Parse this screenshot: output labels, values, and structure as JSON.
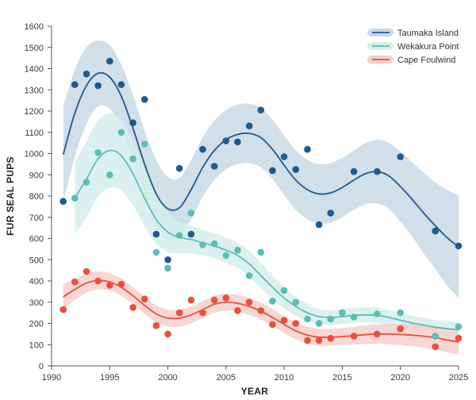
{
  "chart_data": {
    "type": "scatter",
    "title": "",
    "xlabel": "YEAR",
    "ylabel": "FUR SEAL PUPS",
    "xlim": [
      1990,
      2025
    ],
    "ylim": [
      0,
      1600
    ],
    "x_ticks": [
      1990,
      1995,
      2000,
      2005,
      2010,
      2015,
      2020,
      2025
    ],
    "y_ticks": [
      0,
      100,
      200,
      300,
      400,
      500,
      600,
      700,
      800,
      900,
      1000,
      1100,
      1200,
      1300,
      1400,
      1500,
      1600
    ],
    "grid": false,
    "legend_position": "top-right",
    "series": [
      {
        "name": "Taumaka Island",
        "color": "#1f5a8c",
        "band_color": "#c9d9e5",
        "points": [
          [
            1991,
            775
          ],
          [
            1992,
            1325
          ],
          [
            1993,
            1375
          ],
          [
            1994,
            1320
          ],
          [
            1995,
            1435
          ],
          [
            1996,
            1325
          ],
          [
            1997,
            1145
          ],
          [
            1998,
            1255
          ],
          [
            1999,
            620
          ],
          [
            2000,
            500
          ],
          [
            2001,
            930
          ],
          [
            2002,
            620
          ],
          [
            2003,
            1020
          ],
          [
            2004,
            940
          ],
          [
            2005,
            1060
          ],
          [
            2006,
            1055
          ],
          [
            2007,
            1130
          ],
          [
            2008,
            1205
          ],
          [
            2009,
            920
          ],
          [
            2010,
            985
          ],
          [
            2011,
            925
          ],
          [
            2012,
            1020
          ],
          [
            2013,
            665
          ],
          [
            2014,
            720
          ],
          [
            2016,
            915
          ],
          [
            2018,
            915
          ],
          [
            2020,
            985
          ],
          [
            2023,
            635
          ],
          [
            2025,
            565
          ]
        ],
        "trend": [
          [
            1991,
            995
          ],
          [
            1992,
            1190
          ],
          [
            1993,
            1320
          ],
          [
            1994,
            1378
          ],
          [
            1995,
            1360
          ],
          [
            1996,
            1270
          ],
          [
            1997,
            1120
          ],
          [
            1998,
            950
          ],
          [
            1999,
            810
          ],
          [
            2000,
            740
          ],
          [
            2001,
            745
          ],
          [
            2002,
            830
          ],
          [
            2003,
            935
          ],
          [
            2004,
            1015
          ],
          [
            2005,
            1065
          ],
          [
            2006,
            1090
          ],
          [
            2007,
            1095
          ],
          [
            2008,
            1075
          ],
          [
            2009,
            1020
          ],
          [
            2010,
            945
          ],
          [
            2011,
            875
          ],
          [
            2012,
            830
          ],
          [
            2013,
            810
          ],
          [
            2014,
            815
          ],
          [
            2015,
            840
          ],
          [
            2016,
            875
          ],
          [
            2017,
            905
          ],
          [
            2018,
            915
          ],
          [
            2019,
            895
          ],
          [
            2020,
            845
          ],
          [
            2021,
            785
          ],
          [
            2022,
            720
          ],
          [
            2023,
            660
          ],
          [
            2024,
            605
          ],
          [
            2025,
            560
          ]
        ],
        "band_halfwidth": [
          225,
          205,
          180,
          155,
          150,
          150,
          155,
          160,
          160,
          150,
          140,
          140,
          140,
          140,
          140,
          140,
          140,
          140,
          140,
          140,
          140,
          140,
          140,
          140,
          140,
          140,
          145,
          150,
          155,
          165,
          175,
          190,
          205,
          225,
          240
        ]
      },
      {
        "name": "Wekakura Point",
        "color": "#5dbdb5",
        "band_color": "#d6eeec",
        "points": [
          [
            1992,
            790
          ],
          [
            1993,
            865
          ],
          [
            1994,
            1005
          ],
          [
            1995,
            900
          ],
          [
            1996,
            1100
          ],
          [
            1997,
            975
          ],
          [
            1998,
            1045
          ],
          [
            1999,
            535
          ],
          [
            2000,
            460
          ],
          [
            2001,
            615
          ],
          [
            2002,
            720
          ],
          [
            2003,
            570
          ],
          [
            2004,
            575
          ],
          [
            2005,
            520
          ],
          [
            2006,
            545
          ],
          [
            2007,
            425
          ],
          [
            2008,
            535
          ],
          [
            2009,
            305
          ],
          [
            2010,
            355
          ],
          [
            2011,
            300
          ],
          [
            2012,
            220
          ],
          [
            2013,
            200
          ],
          [
            2014,
            220
          ],
          [
            2015,
            250
          ],
          [
            2016,
            230
          ],
          [
            2018,
            245
          ],
          [
            2020,
            250
          ],
          [
            2023,
            140
          ],
          [
            2025,
            185
          ]
        ],
        "trend": [
          [
            1992,
            790
          ],
          [
            1993,
            880
          ],
          [
            1994,
            975
          ],
          [
            1995,
            1015
          ],
          [
            1996,
            990
          ],
          [
            1997,
            905
          ],
          [
            1998,
            790
          ],
          [
            1999,
            690
          ],
          [
            2000,
            630
          ],
          [
            2001,
            605
          ],
          [
            2002,
            595
          ],
          [
            2003,
            580
          ],
          [
            2004,
            565
          ],
          [
            2005,
            545
          ],
          [
            2006,
            520
          ],
          [
            2007,
            480
          ],
          [
            2008,
            425
          ],
          [
            2009,
            370
          ],
          [
            2010,
            320
          ],
          [
            2011,
            280
          ],
          [
            2012,
            250
          ],
          [
            2013,
            232
          ],
          [
            2014,
            228
          ],
          [
            2015,
            232
          ],
          [
            2016,
            238
          ],
          [
            2017,
            240
          ],
          [
            2018,
            238
          ],
          [
            2019,
            228
          ],
          [
            2020,
            215
          ],
          [
            2021,
            202
          ],
          [
            2022,
            192
          ],
          [
            2023,
            182
          ],
          [
            2024,
            175
          ],
          [
            2025,
            170
          ]
        ],
        "band_halfwidth": [
          170,
          180,
          180,
          175,
          165,
          150,
          135,
          115,
          95,
          75,
          65,
          60,
          60,
          60,
          60,
          60,
          60,
          55,
          50,
          45,
          40,
          35,
          35,
          35,
          35,
          35,
          35,
          35,
          35,
          35,
          35,
          35,
          35,
          35
        ]
      },
      {
        "name": "Cape Foulwind",
        "color": "#e8503d",
        "band_color": "#f6cfcb",
        "points": [
          [
            1991,
            265
          ],
          [
            1992,
            395
          ],
          [
            1993,
            445
          ],
          [
            1994,
            400
          ],
          [
            1995,
            380
          ],
          [
            1996,
            385
          ],
          [
            1997,
            275
          ],
          [
            1998,
            315
          ],
          [
            1999,
            190
          ],
          [
            2000,
            150
          ],
          [
            2001,
            250
          ],
          [
            2002,
            310
          ],
          [
            2003,
            250
          ],
          [
            2004,
            310
          ],
          [
            2005,
            320
          ],
          [
            2006,
            260
          ],
          [
            2007,
            300
          ],
          [
            2008,
            260
          ],
          [
            2009,
            195
          ],
          [
            2010,
            215
          ],
          [
            2011,
            200
          ],
          [
            2012,
            120
          ],
          [
            2013,
            120
          ],
          [
            2014,
            130
          ],
          [
            2016,
            140
          ],
          [
            2018,
            150
          ],
          [
            2020,
            175
          ],
          [
            2023,
            90
          ],
          [
            2025,
            130
          ]
        ],
        "trend": [
          [
            1991,
            325
          ],
          [
            1992,
            360
          ],
          [
            1993,
            390
          ],
          [
            1994,
            402
          ],
          [
            1995,
            395
          ],
          [
            1996,
            370
          ],
          [
            1997,
            330
          ],
          [
            1998,
            285
          ],
          [
            1999,
            245
          ],
          [
            2000,
            225
          ],
          [
            2001,
            225
          ],
          [
            2002,
            240
          ],
          [
            2003,
            265
          ],
          [
            2004,
            290
          ],
          [
            2005,
            300
          ],
          [
            2006,
            295
          ],
          [
            2007,
            280
          ],
          [
            2008,
            258
          ],
          [
            2009,
            228
          ],
          [
            2010,
            195
          ],
          [
            2011,
            165
          ],
          [
            2012,
            145
          ],
          [
            2013,
            135
          ],
          [
            2014,
            135
          ],
          [
            2015,
            138
          ],
          [
            2016,
            142
          ],
          [
            2017,
            147
          ],
          [
            2018,
            150
          ],
          [
            2019,
            150
          ],
          [
            2020,
            148
          ],
          [
            2021,
            145
          ],
          [
            2022,
            140
          ],
          [
            2023,
            133
          ],
          [
            2024,
            122
          ],
          [
            2025,
            112
          ]
        ],
        "band_halfwidth": [
          60,
          50,
          45,
          42,
          40,
          40,
          40,
          40,
          40,
          40,
          40,
          40,
          40,
          40,
          40,
          40,
          40,
          40,
          40,
          40,
          40,
          40,
          40,
          40,
          40,
          42,
          44,
          46,
          48,
          50,
          52,
          54,
          56,
          58,
          60
        ]
      }
    ]
  }
}
